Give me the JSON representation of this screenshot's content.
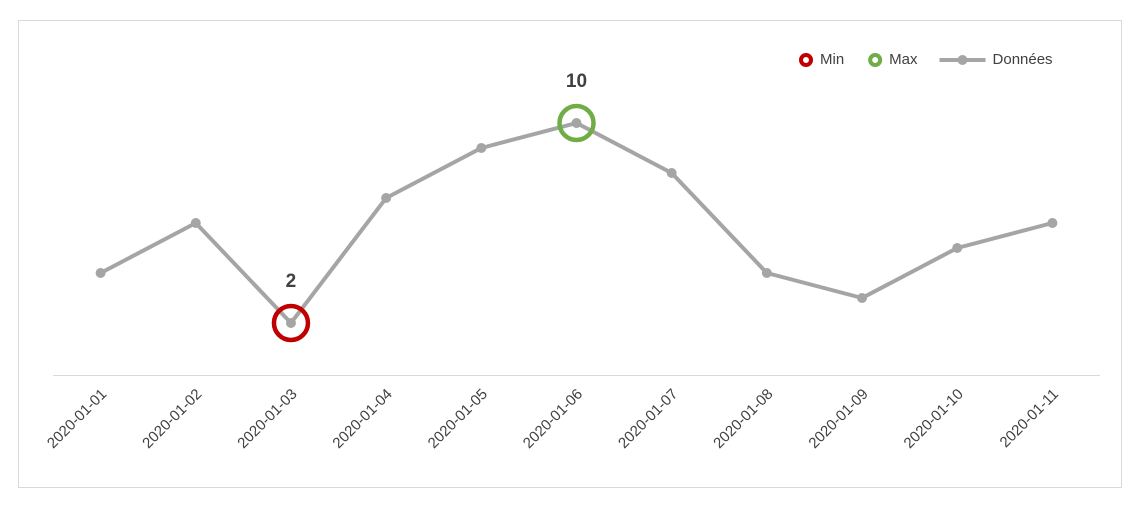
{
  "chart_data": {
    "type": "line",
    "categories": [
      "2020-01-01",
      "2020-01-02",
      "2020-01-03",
      "2020-01-04",
      "2020-01-05",
      "2020-01-06",
      "2020-01-07",
      "2020-01-08",
      "2020-01-09",
      "2020-01-10",
      "2020-01-11"
    ],
    "series": [
      {
        "name": "Min",
        "color": "#c00000",
        "marker": "ring",
        "values": [
          null,
          null,
          2,
          null,
          null,
          null,
          null,
          null,
          null,
          null,
          null
        ]
      },
      {
        "name": "Max",
        "color": "#70ad47",
        "marker": "ring",
        "values": [
          null,
          null,
          null,
          null,
          null,
          10,
          null,
          null,
          null,
          null,
          null
        ]
      },
      {
        "name": "Données",
        "color": "#a5a5a5",
        "marker": "line",
        "values": [
          4,
          6,
          2,
          7,
          9,
          10,
          8,
          4,
          3,
          5,
          6
        ]
      }
    ],
    "ylim": [
      0,
      12
    ],
    "legend": "top-right"
  }
}
